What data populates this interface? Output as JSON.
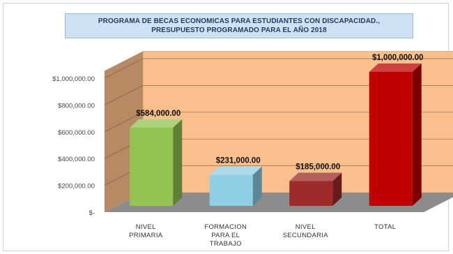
{
  "chart_data": {
    "type": "bar",
    "title_lines": [
      "PROGRAMA DE BECAS ECONOMICAS PARA ESTUDIANTES CON DISCAPACIDAD.,",
      "PRESUPUESTO PROGRAMADO PARA EL AÑO 2018"
    ],
    "categories": [
      [
        "NIVEL",
        "PRIMARIA"
      ],
      [
        "FORMACION",
        "PARA EL",
        "TRABAJO"
      ],
      [
        "NIVEL",
        "SECUNDARIA"
      ],
      [
        "TOTAL"
      ]
    ],
    "values": [
      584000,
      231000,
      185000,
      1000000
    ],
    "data_labels": [
      "$584,000.00",
      "$231,000.00",
      "$185,000.00",
      "$1,000,000.00"
    ],
    "y_ticks": [
      "$-",
      "$200,000.00",
      "$400,000.00",
      "$600,000.00",
      "$800,000.00",
      "$1,000,000.00"
    ],
    "ylim": [
      0,
      1000000
    ],
    "grid": true,
    "colors": {
      "bars": [
        "#92c353",
        "#8fcfe3",
        "#9e2a2a",
        "#c00000"
      ],
      "back_wall": "#f9c08e",
      "side_wall": "#b88a64",
      "floor": "#8c8c8c"
    }
  }
}
